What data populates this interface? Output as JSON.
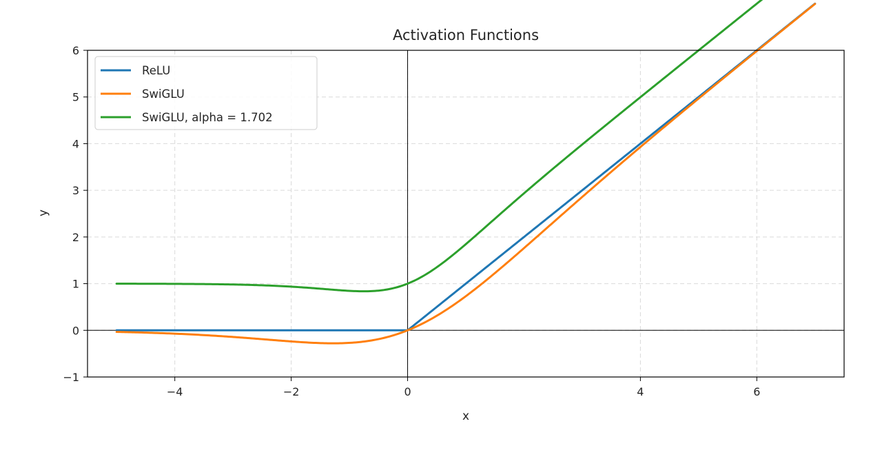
{
  "chart_data": {
    "type": "line",
    "title": "Activation Functions",
    "xlabel": "x",
    "ylabel": "y",
    "xlim": [
      -5.5,
      7.5
    ],
    "ylim": [
      -1,
      6
    ],
    "xticks": [
      -4,
      -2,
      0,
      4,
      6
    ],
    "xtick_labels": [
      "−4",
      "−2",
      "0",
      "4",
      "6"
    ],
    "yticks": [
      -1,
      0,
      1,
      2,
      3,
      4,
      5,
      6
    ],
    "ytick_labels": [
      "−1",
      "0",
      "1",
      "2",
      "3",
      "4",
      "5",
      "6"
    ],
    "grid": true,
    "legend_position": "top-left",
    "x_range": [
      -5,
      7
    ],
    "series": [
      {
        "name": "ReLU",
        "color": "#1f77b4",
        "function": "relu"
      },
      {
        "name": "SwiGLU",
        "color": "#ff7f0e",
        "function": "swish"
      },
      {
        "name": "SwiGLU, alpha = 1.702",
        "color": "#2ca02c",
        "function": "swish_alpha",
        "alpha": 1.702
      }
    ]
  }
}
